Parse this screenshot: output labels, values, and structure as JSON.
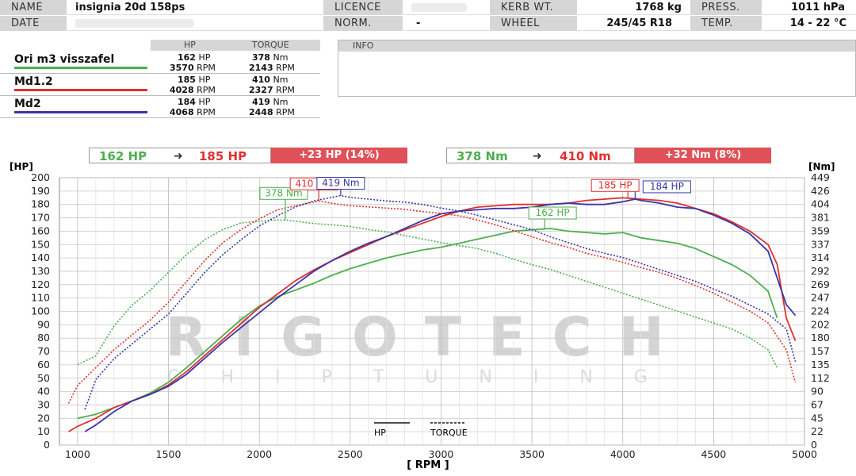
{
  "header": {
    "name_label": "NAME",
    "name_value": "insignia 20d 158ps",
    "date_label": "DATE",
    "licence_label": "LICENCE",
    "norm_label": "NORM.",
    "norm_value": "-",
    "kerb_label": "KERB WT.",
    "kerb_value": "1768 kg",
    "wheel_label": "WHEEL",
    "wheel_value": "245/45 R18",
    "press_label": "PRESS.",
    "press_value": "1011 hPa",
    "temp_label": "TEMP.",
    "temp_value": "14 - 22 °C"
  },
  "values_table": {
    "hp_header": "HP",
    "torque_header": "TORQUE",
    "rows": [
      {
        "name": "Ori m3 visszafel",
        "color": "#4caf50",
        "hp": "162",
        "hp_unit": "HP",
        "hp_rpm": "3570",
        "torque": "378",
        "torque_unit": "Nm",
        "torque_rpm": "2143",
        "rpm_unit": "RPM"
      },
      {
        "name": "Md1.2",
        "color": "#e03030",
        "hp": "185",
        "hp_unit": "HP",
        "hp_rpm": "4028",
        "torque": "410",
        "torque_unit": "Nm",
        "torque_rpm": "2327",
        "rpm_unit": "RPM"
      },
      {
        "name": "Md2",
        "color": "#3a35a8",
        "hp": "184",
        "hp_unit": "HP",
        "hp_rpm": "4068",
        "torque": "419",
        "torque_unit": "Nm",
        "torque_rpm": "2448",
        "rpm_unit": "RPM"
      }
    ]
  },
  "info": {
    "label": "INFO"
  },
  "summary": {
    "hp_from": "162 HP",
    "hp_to": "185 HP",
    "hp_gain": "+23 HP  (14%)",
    "nm_from": "378 Nm",
    "nm_to": "410 Nm",
    "nm_gain": "+32 Nm  (8%)"
  },
  "watermark": {
    "line1": "RIGOTECH",
    "line2": "CHIPTUNING"
  },
  "chart_data": {
    "type": "line",
    "xlabel": "[ RPM ]",
    "ylabel_left": "[HP]",
    "ylabel_right": "[Nm]",
    "xlim": [
      900,
      5000
    ],
    "ylim_left": [
      0,
      200
    ],
    "x_ticks": [
      1000,
      1500,
      2000,
      2500,
      3000,
      3500,
      4000,
      4500,
      5000
    ],
    "y_ticks_left": [
      0,
      10,
      20,
      30,
      40,
      50,
      60,
      70,
      80,
      90,
      100,
      110,
      120,
      130,
      140,
      150,
      160,
      170,
      180,
      190,
      200
    ],
    "y_ticks_right": [
      "0",
      "22",
      "45",
      "67",
      "90",
      "112",
      "135",
      "157",
      "180",
      "202",
      "224",
      "247",
      "269",
      "292",
      "314",
      "337",
      "359",
      "381",
      "404",
      "426",
      "449"
    ],
    "grid": true,
    "legend": {
      "hp": "HP",
      "torque": "TORQUE"
    },
    "series": [
      {
        "name": "Ori m3 visszafel",
        "kind": "HP",
        "color": "#4caf50",
        "style": "solid",
        "x": [
          1000,
          1100,
          1200,
          1300,
          1400,
          1500,
          1600,
          1700,
          1800,
          1900,
          2000,
          2100,
          2200,
          2300,
          2400,
          2500,
          2600,
          2700,
          2800,
          2900,
          3000,
          3100,
          3200,
          3300,
          3400,
          3500,
          3600,
          3700,
          3800,
          3900,
          4000,
          4100,
          4200,
          4300,
          4400,
          4500,
          4600,
          4700,
          4800,
          4850
        ],
        "y": [
          20,
          23,
          28,
          33,
          39,
          47,
          58,
          70,
          82,
          94,
          104,
          111,
          116,
          121,
          127,
          132,
          136,
          140,
          143,
          146,
          148,
          151,
          154,
          157,
          160,
          161,
          162,
          160,
          159,
          158,
          159,
          155,
          153,
          151,
          147,
          141,
          135,
          127,
          115,
          95
        ]
      },
      {
        "name": "Md1.2",
        "kind": "HP",
        "color": "#e03030",
        "style": "solid",
        "x": [
          950,
          1000,
          1100,
          1200,
          1300,
          1400,
          1500,
          1600,
          1700,
          1800,
          1900,
          2000,
          2100,
          2200,
          2300,
          2400,
          2500,
          2600,
          2700,
          2800,
          2900,
          3000,
          3100,
          3200,
          3300,
          3400,
          3500,
          3600,
          3700,
          3800,
          3900,
          4000,
          4100,
          4200,
          4300,
          4400,
          4500,
          4600,
          4700,
          4800,
          4850,
          4900,
          4950
        ],
        "y": [
          10,
          14,
          20,
          28,
          33,
          38,
          45,
          55,
          67,
          79,
          91,
          103,
          113,
          123,
          131,
          138,
          144,
          150,
          156,
          161,
          166,
          171,
          175,
          178,
          179,
          180,
          180,
          180,
          181,
          183,
          184,
          185,
          184,
          183,
          181,
          177,
          173,
          167,
          160,
          150,
          135,
          95,
          78
        ]
      },
      {
        "name": "Md2",
        "kind": "HP",
        "color": "#3a35a8",
        "style": "solid",
        "x": [
          1040,
          1100,
          1200,
          1300,
          1400,
          1500,
          1600,
          1700,
          1800,
          1900,
          2000,
          2100,
          2200,
          2300,
          2400,
          2500,
          2600,
          2700,
          2800,
          2900,
          3000,
          3100,
          3200,
          3300,
          3400,
          3500,
          3600,
          3700,
          3800,
          3900,
          4000,
          4068,
          4100,
          4200,
          4300,
          4400,
          4500,
          4600,
          4700,
          4800,
          4850,
          4900,
          4950
        ],
        "y": [
          10,
          15,
          25,
          33,
          38,
          44,
          53,
          65,
          77,
          88,
          99,
          110,
          120,
          130,
          138,
          145,
          151,
          156,
          162,
          168,
          173,
          175,
          176,
          177,
          177,
          178,
          180,
          181,
          180,
          180,
          182,
          184,
          183,
          181,
          178,
          177,
          172,
          166,
          158,
          145,
          125,
          105,
          97
        ]
      },
      {
        "name": "Ori m3 visszafel",
        "kind": "TORQUE",
        "color": "#4caf50",
        "style": "dotted",
        "x": [
          1000,
          1100,
          1200,
          1300,
          1400,
          1500,
          1600,
          1700,
          1800,
          1900,
          2000,
          2100,
          2143,
          2200,
          2300,
          2400,
          2500,
          2600,
          2700,
          2800,
          2900,
          3000,
          3100,
          3200,
          3300,
          3400,
          3500,
          3600,
          3700,
          3800,
          3900,
          4000,
          4100,
          4200,
          4300,
          4400,
          4500,
          4600,
          4700,
          4800,
          4850
        ],
        "y": [
          135,
          150,
          200,
          235,
          260,
          290,
          320,
          345,
          362,
          373,
          376,
          378,
          378,
          376,
          372,
          370,
          367,
          362,
          358,
          352,
          346,
          340,
          335,
          330,
          322,
          312,
          303,
          295,
          285,
          275,
          265,
          255,
          245,
          235,
          225,
          215,
          205,
          195,
          180,
          160,
          130
        ]
      },
      {
        "name": "Md1.2",
        "kind": "TORQUE",
        "color": "#e03030",
        "style": "dotted",
        "x": [
          950,
          1000,
          1100,
          1200,
          1300,
          1400,
          1500,
          1600,
          1700,
          1800,
          1900,
          2000,
          2100,
          2200,
          2327,
          2400,
          2500,
          2600,
          2700,
          2800,
          2900,
          3000,
          3100,
          3200,
          3300,
          3400,
          3500,
          3600,
          3700,
          3800,
          3900,
          4000,
          4100,
          4200,
          4300,
          4400,
          4500,
          4600,
          4700,
          4800,
          4900,
          4950
        ],
        "y": [
          70,
          100,
          130,
          160,
          185,
          210,
          240,
          275,
          310,
          340,
          362,
          380,
          395,
          402,
          410,
          406,
          402,
          400,
          398,
          396,
          392,
          389,
          385,
          378,
          370,
          360,
          350,
          340,
          332,
          322,
          315,
          307,
          298,
          290,
          280,
          268,
          255,
          240,
          225,
          205,
          160,
          105
        ]
      },
      {
        "name": "Md2",
        "kind": "TORQUE",
        "color": "#3a35a8",
        "style": "dotted",
        "x": [
          1040,
          1100,
          1200,
          1300,
          1400,
          1500,
          1600,
          1700,
          1800,
          1900,
          2000,
          2100,
          2200,
          2300,
          2448,
          2500,
          2600,
          2700,
          2800,
          2900,
          3000,
          3100,
          3200,
          3300,
          3400,
          3500,
          3600,
          3700,
          3800,
          3900,
          4000,
          4100,
          4200,
          4300,
          4400,
          4500,
          4600,
          4700,
          4800,
          4900,
          4950
        ],
        "y": [
          60,
          110,
          145,
          170,
          195,
          220,
          255,
          290,
          320,
          345,
          368,
          385,
          400,
          410,
          419,
          416,
          413,
          410,
          408,
          404,
          398,
          393,
          386,
          378,
          370,
          362,
          350,
          340,
          330,
          322,
          315,
          305,
          295,
          285,
          275,
          262,
          250,
          235,
          220,
          195,
          140
        ]
      }
    ],
    "annotations": [
      {
        "text": "378 Nm",
        "x": 2143,
        "color": "#4caf50",
        "kind": "TORQUE",
        "value": 378
      },
      {
        "text": "410 Nm",
        "x": 2327,
        "color": "#e03030",
        "kind": "TORQUE",
        "value": 410
      },
      {
        "text": "419 Nm",
        "x": 2448,
        "color": "#3a35a8",
        "kind": "TORQUE",
        "value": 419
      },
      {
        "text": "162 HP",
        "x": 3570,
        "color": "#4caf50",
        "kind": "HP",
        "value": 162
      },
      {
        "text": "185 HP",
        "x": 4028,
        "color": "#e03030",
        "kind": "HP",
        "value": 185
      },
      {
        "text": "184 HP",
        "x": 4068,
        "color": "#3a35a8",
        "kind": "HP",
        "value": 184
      }
    ]
  }
}
